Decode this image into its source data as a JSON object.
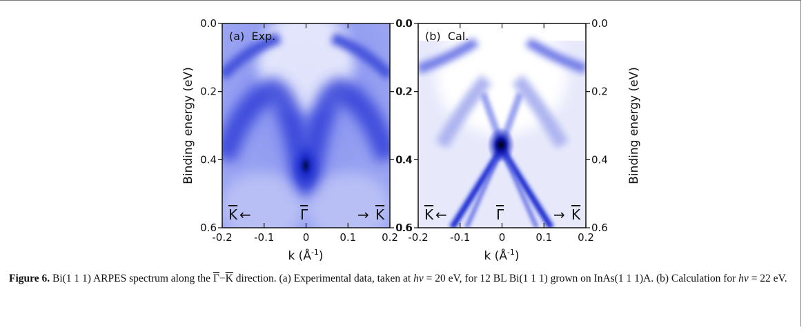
{
  "figure": {
    "panels": [
      {
        "label": "(a)  Exp.",
        "variant": "exp"
      },
      {
        "label": "(b)  Cal.",
        "variant": "cal"
      }
    ],
    "y_axis_title": "Binding energy (eV)",
    "x_axis_title_main": "k (Å",
    "x_axis_title_sup": "-1",
    "x_axis_title_close": ")",
    "x_ticks": [
      "-0.2",
      "-0.1",
      "0",
      "0.1",
      "0.2"
    ],
    "y_ticks": [
      "0.0",
      "0.2",
      "0.4",
      "0.6"
    ],
    "k_point_left": "K",
    "k_point_center": "Γ",
    "k_point_right": "K",
    "arrow_left": "←",
    "arrow_right": "→"
  },
  "chart_data": [
    {
      "type": "heatmap",
      "title": "(a) Exp.",
      "xlabel": "k (Å-1)",
      "ylabel": "Binding energy (eV)",
      "xlim": [
        -0.2,
        0.2
      ],
      "ylim": [
        0.6,
        0.0
      ],
      "x_ticks": [
        -0.2,
        -0.1,
        0,
        0.1,
        0.2
      ],
      "y_ticks": [
        0.0,
        0.2,
        0.4,
        0.6
      ],
      "colormap": [
        "#ffffff",
        "#1f2fe0",
        "#000000"
      ]
    },
    {
      "type": "heatmap",
      "title": "(b) Cal.",
      "xlabel": "k (Å-1)",
      "ylabel": "Binding energy (eV)",
      "xlim": [
        -0.2,
        0.2
      ],
      "ylim": [
        0.6,
        0.0
      ],
      "x_ticks": [
        -0.2,
        -0.1,
        0,
        0.1,
        0.2
      ],
      "y_ticks": [
        0.0,
        0.2,
        0.4,
        0.6
      ],
      "colormap": [
        "#ffffff",
        "#1f2fe0",
        "#000000"
      ]
    }
  ],
  "caption": {
    "label": "Figure 6.",
    "seg1": " Bi(1 1 1) ARPES spectrum along the ",
    "gamma": "Γ",
    "dash": "−",
    "kbar": "K",
    "seg2": " direction. (a) Experimental data, taken at ",
    "hnu1": "hν",
    "seg3": " = 20 eV, for 12 BL Bi(1 1 1) grown on InAs(1 1 1)A. (b) Calculation for ",
    "hnu2": "hν",
    "seg4": " = 22 eV."
  }
}
